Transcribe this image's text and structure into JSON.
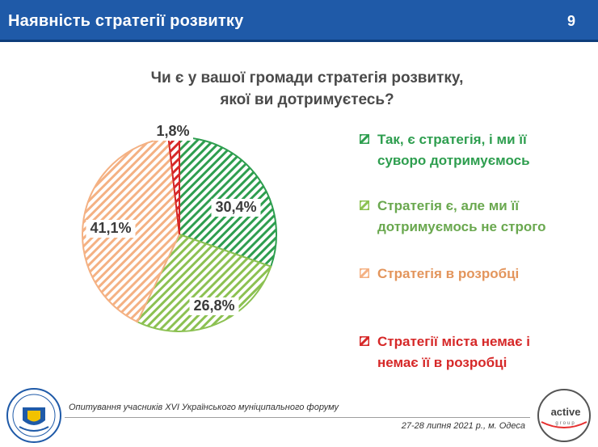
{
  "header": {
    "title": "Наявність стратегії розвитку",
    "page_number": "9"
  },
  "chart_data": {
    "type": "pie",
    "title": "Чи є у вашої громади стратегія розвитку, якої ви дотримуєтесь?",
    "title_lines": [
      "Чи є у вашої громади стратегія розвитку,",
      "якої ви дотримуєтесь?"
    ],
    "slices": [
      {
        "label": "Так, є стратегія, і ми її суворо дотримуємось",
        "label_lines": [
          "Так, є стратегія, і ми її",
          "суворо дотримуємось"
        ],
        "value": 30.4,
        "display": "30,4%",
        "color": "#2e9e4f",
        "text_color": "#2e9e4f"
      },
      {
        "label": "Стратегія є, але ми її дотримуємось не строго",
        "label_lines": [
          "Стратегія є, але ми її",
          "дотримуємось не строго"
        ],
        "value": 26.8,
        "display": "26,8%",
        "color": "#8cc152",
        "text_color": "#6aa84f"
      },
      {
        "label": "Стратегія в розробці",
        "label_lines": [
          "Стратегія в розробці"
        ],
        "value": 41.1,
        "display": "41,1%",
        "color": "#f4b183",
        "text_color": "#e3955c"
      },
      {
        "label": "Стратегії міста немає і немає її в розробці",
        "label_lines": [
          "Стратегії міста немає і",
          "немає її в розробці"
        ],
        "value": 1.8,
        "display": "1,8%",
        "color": "#d62828",
        "text_color": "#d62828"
      }
    ],
    "legend_position": "right",
    "fill_pattern": "diagonal-hatch"
  },
  "footer": {
    "survey": "Опитування учасників XVI Українського муніципального форуму",
    "date": "27-28 липня 2021 р., м. Одеса",
    "brand": "active",
    "brand_sub": "group"
  }
}
